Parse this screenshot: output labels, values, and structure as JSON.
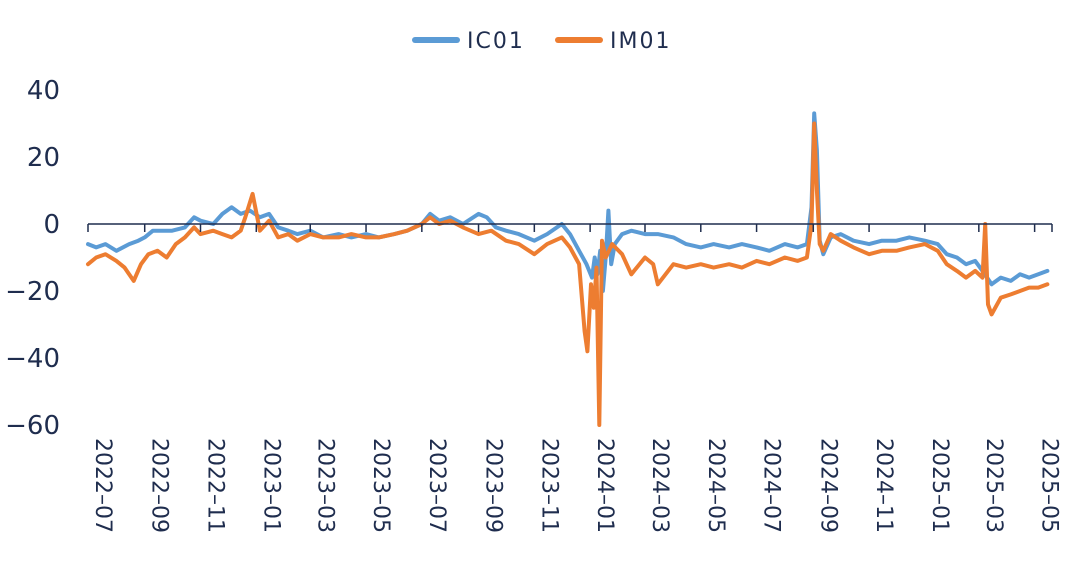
{
  "chart_data": {
    "type": "line",
    "title": "",
    "xlabel": "",
    "ylabel": "",
    "ylim": [
      -60,
      40
    ],
    "yticks": [
      40,
      20,
      0,
      -20,
      -40,
      -60
    ],
    "xlim": [
      "2022-07-01",
      "2025-05-20"
    ],
    "xticks": [
      "2022-07",
      "2022-09",
      "2022-11",
      "2023-01",
      "2023-03",
      "2023-05",
      "2023-07",
      "2023-09",
      "2023-11",
      "2024-01",
      "2024-03",
      "2024-05",
      "2024-07",
      "2024-09",
      "2024-11",
      "2025-01",
      "2025-03",
      "2025-05"
    ],
    "legend_position": "top-center",
    "grid": false,
    "series": [
      {
        "name": "IC01",
        "color": "#5b9bd5",
        "points": [
          [
            "2022-07-01",
            -6
          ],
          [
            "2022-07-10",
            -7
          ],
          [
            "2022-07-20",
            -6
          ],
          [
            "2022-08-01",
            -8
          ],
          [
            "2022-08-15",
            -6
          ],
          [
            "2022-08-25",
            -5
          ],
          [
            "2022-09-01",
            -4
          ],
          [
            "2022-09-10",
            -2
          ],
          [
            "2022-09-20",
            -2
          ],
          [
            "2022-10-01",
            -2
          ],
          [
            "2022-10-15",
            -1
          ],
          [
            "2022-10-25",
            2
          ],
          [
            "2022-11-01",
            1
          ],
          [
            "2022-11-15",
            0
          ],
          [
            "2022-11-25",
            3
          ],
          [
            "2022-12-05",
            5
          ],
          [
            "2022-12-15",
            3
          ],
          [
            "2022-12-25",
            4
          ],
          [
            "2023-01-05",
            2
          ],
          [
            "2023-01-15",
            3
          ],
          [
            "2023-01-25",
            -1
          ],
          [
            "2023-02-05",
            -2
          ],
          [
            "2023-02-15",
            -3
          ],
          [
            "2023-03-01",
            -2
          ],
          [
            "2023-03-15",
            -4
          ],
          [
            "2023-04-01",
            -3
          ],
          [
            "2023-04-15",
            -4
          ],
          [
            "2023-05-01",
            -3
          ],
          [
            "2023-05-15",
            -4
          ],
          [
            "2023-06-01",
            -3
          ],
          [
            "2023-06-15",
            -2
          ],
          [
            "2023-07-01",
            0
          ],
          [
            "2023-07-10",
            3
          ],
          [
            "2023-07-20",
            1
          ],
          [
            "2023-08-01",
            2
          ],
          [
            "2023-08-15",
            0
          ],
          [
            "2023-09-01",
            3
          ],
          [
            "2023-09-10",
            2
          ],
          [
            "2023-09-20",
            -1
          ],
          [
            "2023-10-01",
            -2
          ],
          [
            "2023-10-15",
            -3
          ],
          [
            "2023-11-01",
            -5
          ],
          [
            "2023-11-15",
            -3
          ],
          [
            "2023-12-01",
            0
          ],
          [
            "2023-12-10",
            -3
          ],
          [
            "2023-12-20",
            -8
          ],
          [
            "2023-12-28",
            -12
          ],
          [
            "2024-01-03",
            -16
          ],
          [
            "2024-01-06",
            -10
          ],
          [
            "2024-01-09",
            -15
          ],
          [
            "2024-01-12",
            -8
          ],
          [
            "2024-01-15",
            -20
          ],
          [
            "2024-01-18",
            -10
          ],
          [
            "2024-01-21",
            4
          ],
          [
            "2024-01-24",
            -12
          ],
          [
            "2024-01-28",
            -6
          ],
          [
            "2024-02-05",
            -3
          ],
          [
            "2024-02-15",
            -2
          ],
          [
            "2024-03-01",
            -3
          ],
          [
            "2024-03-15",
            -3
          ],
          [
            "2024-04-01",
            -4
          ],
          [
            "2024-04-15",
            -6
          ],
          [
            "2024-05-01",
            -7
          ],
          [
            "2024-05-15",
            -6
          ],
          [
            "2024-06-01",
            -7
          ],
          [
            "2024-06-15",
            -6
          ],
          [
            "2024-07-01",
            -7
          ],
          [
            "2024-07-15",
            -8
          ],
          [
            "2024-08-01",
            -6
          ],
          [
            "2024-08-15",
            -7
          ],
          [
            "2024-08-25",
            -6
          ],
          [
            "2024-08-30",
            5
          ],
          [
            "2024-09-02",
            33
          ],
          [
            "2024-09-05",
            22
          ],
          [
            "2024-09-08",
            -5
          ],
          [
            "2024-09-12",
            -9
          ],
          [
            "2024-09-20",
            -4
          ],
          [
            "2024-10-01",
            -3
          ],
          [
            "2024-10-15",
            -5
          ],
          [
            "2024-11-01",
            -6
          ],
          [
            "2024-11-15",
            -5
          ],
          [
            "2024-12-01",
            -5
          ],
          [
            "2024-12-15",
            -4
          ],
          [
            "2025-01-01",
            -5
          ],
          [
            "2025-01-15",
            -6
          ],
          [
            "2025-01-25",
            -9
          ],
          [
            "2025-02-05",
            -10
          ],
          [
            "2025-02-15",
            -12
          ],
          [
            "2025-02-25",
            -11
          ],
          [
            "2025-03-05",
            -14
          ],
          [
            "2025-03-10",
            -16
          ],
          [
            "2025-03-15",
            -18
          ],
          [
            "2025-03-25",
            -16
          ],
          [
            "2025-04-05",
            -17
          ],
          [
            "2025-04-15",
            -15
          ],
          [
            "2025-04-25",
            -16
          ],
          [
            "2025-05-05",
            -15
          ],
          [
            "2025-05-15",
            -14
          ]
        ]
      },
      {
        "name": "IM01",
        "color": "#ed7d31",
        "points": [
          [
            "2022-07-01",
            -12
          ],
          [
            "2022-07-10",
            -10
          ],
          [
            "2022-07-20",
            -9
          ],
          [
            "2022-08-01",
            -11
          ],
          [
            "2022-08-10",
            -13
          ],
          [
            "2022-08-20",
            -17
          ],
          [
            "2022-08-28",
            -12
          ],
          [
            "2022-09-05",
            -9
          ],
          [
            "2022-09-15",
            -8
          ],
          [
            "2022-09-25",
            -10
          ],
          [
            "2022-10-05",
            -6
          ],
          [
            "2022-10-15",
            -4
          ],
          [
            "2022-10-25",
            -1
          ],
          [
            "2022-11-01",
            -3
          ],
          [
            "2022-11-15",
            -2
          ],
          [
            "2022-11-25",
            -3
          ],
          [
            "2022-12-05",
            -4
          ],
          [
            "2022-12-15",
            -2
          ],
          [
            "2022-12-20",
            2
          ],
          [
            "2022-12-28",
            9
          ],
          [
            "2023-01-05",
            -2
          ],
          [
            "2023-01-15",
            1
          ],
          [
            "2023-01-25",
            -4
          ],
          [
            "2023-02-05",
            -3
          ],
          [
            "2023-02-15",
            -5
          ],
          [
            "2023-03-01",
            -3
          ],
          [
            "2023-03-15",
            -4
          ],
          [
            "2023-04-01",
            -4
          ],
          [
            "2023-04-15",
            -3
          ],
          [
            "2023-05-01",
            -4
          ],
          [
            "2023-05-15",
            -4
          ],
          [
            "2023-06-01",
            -3
          ],
          [
            "2023-06-15",
            -2
          ],
          [
            "2023-07-01",
            0
          ],
          [
            "2023-07-10",
            2
          ],
          [
            "2023-07-20",
            0
          ],
          [
            "2023-08-01",
            1
          ],
          [
            "2023-08-15",
            -1
          ],
          [
            "2023-09-01",
            -3
          ],
          [
            "2023-09-15",
            -2
          ],
          [
            "2023-10-01",
            -5
          ],
          [
            "2023-10-15",
            -6
          ],
          [
            "2023-11-01",
            -9
          ],
          [
            "2023-11-15",
            -6
          ],
          [
            "2023-12-01",
            -4
          ],
          [
            "2023-12-10",
            -7
          ],
          [
            "2023-12-20",
            -12
          ],
          [
            "2023-12-26",
            -32
          ],
          [
            "2023-12-29",
            -38
          ],
          [
            "2024-01-02",
            -18
          ],
          [
            "2024-01-05",
            -25
          ],
          [
            "2024-01-08",
            -13
          ],
          [
            "2024-01-11",
            -60
          ],
          [
            "2024-01-14",
            -5
          ],
          [
            "2024-01-18",
            -10
          ],
          [
            "2024-01-25",
            -6
          ],
          [
            "2024-02-05",
            -9
          ],
          [
            "2024-02-15",
            -15
          ],
          [
            "2024-03-01",
            -10
          ],
          [
            "2024-03-10",
            -12
          ],
          [
            "2024-03-15",
            -18
          ],
          [
            "2024-04-01",
            -12
          ],
          [
            "2024-04-15",
            -13
          ],
          [
            "2024-05-01",
            -12
          ],
          [
            "2024-05-15",
            -13
          ],
          [
            "2024-06-01",
            -12
          ],
          [
            "2024-06-15",
            -13
          ],
          [
            "2024-07-01",
            -11
          ],
          [
            "2024-07-15",
            -12
          ],
          [
            "2024-08-01",
            -10
          ],
          [
            "2024-08-15",
            -11
          ],
          [
            "2024-08-25",
            -10
          ],
          [
            "2024-08-30",
            0
          ],
          [
            "2024-09-02",
            30
          ],
          [
            "2024-09-05",
            10
          ],
          [
            "2024-09-08",
            -6
          ],
          [
            "2024-09-12",
            -8
          ],
          [
            "2024-09-20",
            -3
          ],
          [
            "2024-10-01",
            -5
          ],
          [
            "2024-10-15",
            -7
          ],
          [
            "2024-11-01",
            -9
          ],
          [
            "2024-11-15",
            -8
          ],
          [
            "2024-12-01",
            -8
          ],
          [
            "2024-12-15",
            -7
          ],
          [
            "2025-01-01",
            -6
          ],
          [
            "2025-01-15",
            -8
          ],
          [
            "2025-01-25",
            -12
          ],
          [
            "2025-02-05",
            -14
          ],
          [
            "2025-02-15",
            -16
          ],
          [
            "2025-02-25",
            -14
          ],
          [
            "2025-03-05",
            -16
          ],
          [
            "2025-03-08",
            0
          ],
          [
            "2025-03-11",
            -24
          ],
          [
            "2025-03-15",
            -27
          ],
          [
            "2025-03-25",
            -22
          ],
          [
            "2025-04-05",
            -21
          ],
          [
            "2025-04-15",
            -20
          ],
          [
            "2025-04-25",
            -19
          ],
          [
            "2025-05-05",
            -19
          ],
          [
            "2025-05-15",
            -18
          ]
        ]
      }
    ]
  }
}
